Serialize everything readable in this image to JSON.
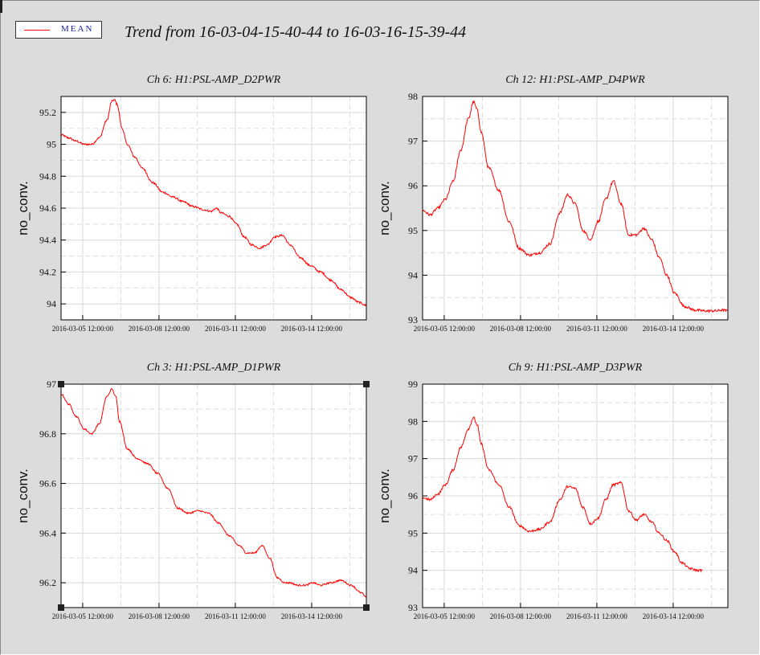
{
  "legend": {
    "label": "MEAN",
    "color": "#ff0000"
  },
  "title": "Trend from 16-03-04-15-40-44 to 16-03-16-15-39-44",
  "line_color": "#ff0000",
  "chart_data": [
    {
      "type": "line",
      "title": "Ch 6: H1:PSL-AMP_D2PWR",
      "ylabel": "no_conv.",
      "xlim": [
        0,
        12
      ],
      "ylim": [
        93.9,
        95.3
      ],
      "yticks": [
        94,
        94.2,
        94.4,
        94.6,
        94.8,
        95,
        95.2
      ],
      "ytick_labels": [
        "94",
        "94.2",
        "94.4",
        "94.6",
        "94.8",
        "95",
        "95.2"
      ],
      "xticks": [
        0.85,
        3.85,
        6.85,
        9.85
      ],
      "xtick_labels": [
        "2016-03-05 12:00:00",
        "2016-03-08 12:00:00",
        "2016-03-11 12:00:00",
        "2016-03-14 12:00:00"
      ],
      "grid": true,
      "noise": 0.006,
      "series": [
        {
          "x": [
            0,
            0.3,
            0.6,
            0.9,
            1.2,
            1.5,
            1.8,
            2.0,
            2.1,
            2.2,
            2.4,
            2.6,
            2.9,
            3.2,
            3.6,
            4.0,
            4.4,
            4.8,
            5.2,
            5.6,
            5.9,
            6.1,
            6.3,
            6.6,
            6.9,
            7.2,
            7.5,
            7.8,
            8.1,
            8.4,
            8.7,
            9.0,
            9.4,
            9.8,
            10.2,
            10.6,
            11.0,
            11.4,
            11.7,
            12.0
          ],
          "y": [
            95.06,
            95.04,
            95.02,
            95.0,
            95.0,
            95.04,
            95.15,
            95.27,
            95.28,
            95.25,
            95.1,
            95.0,
            94.92,
            94.85,
            94.76,
            94.7,
            94.67,
            94.64,
            94.61,
            94.59,
            94.58,
            94.6,
            94.57,
            94.55,
            94.5,
            94.42,
            94.37,
            94.35,
            94.37,
            94.42,
            94.43,
            94.37,
            94.29,
            94.24,
            94.2,
            94.15,
            94.09,
            94.04,
            94.01,
            93.99
          ]
        }
      ]
    },
    {
      "type": "line",
      "title": "Ch 12: H1:PSL-AMP_D4PWR",
      "ylabel": "no_conv.",
      "xlim": [
        0,
        12
      ],
      "ylim": [
        93,
        98
      ],
      "yticks": [
        93,
        94,
        95,
        96,
        97,
        98
      ],
      "ytick_labels": [
        "93",
        "94",
        "95",
        "96",
        "97",
        "98"
      ],
      "xticks": [
        0.85,
        3.85,
        6.85,
        9.85
      ],
      "xtick_labels": [
        "2016-03-05 12:00:00",
        "2016-03-08 12:00:00",
        "2016-03-11 12:00:00",
        "2016-03-14 12:00:00"
      ],
      "grid": true,
      "noise": 0.008,
      "series": [
        {
          "x": [
            0,
            0.3,
            0.6,
            0.9,
            1.2,
            1.5,
            1.8,
            2.0,
            2.15,
            2.3,
            2.6,
            3.0,
            3.4,
            3.8,
            4.2,
            4.6,
            5.0,
            5.4,
            5.7,
            6.0,
            6.3,
            6.6,
            6.9,
            7.2,
            7.5,
            7.8,
            8.1,
            8.4,
            8.7,
            9.0,
            9.3,
            9.6,
            9.9,
            10.3,
            10.7,
            11.1,
            11.5,
            11.8,
            12.0
          ],
          "y": [
            95.45,
            95.35,
            95.5,
            95.7,
            96.1,
            96.8,
            97.5,
            97.88,
            97.7,
            97.2,
            96.4,
            95.9,
            95.2,
            94.6,
            94.45,
            94.5,
            94.7,
            95.4,
            95.8,
            95.6,
            95.0,
            94.8,
            95.2,
            95.7,
            96.1,
            95.6,
            94.9,
            94.9,
            95.05,
            94.8,
            94.4,
            94.0,
            93.6,
            93.3,
            93.22,
            93.2,
            93.2,
            93.22,
            93.2
          ]
        }
      ]
    },
    {
      "type": "line",
      "title": "Ch 3: H1:PSL-AMP_D1PWR",
      "ylabel": "no_conv.",
      "xlim": [
        0,
        12
      ],
      "ylim": [
        96.1,
        97
      ],
      "yticks": [
        96.2,
        96.4,
        96.6,
        96.8,
        97
      ],
      "ytick_labels": [
        "96.2",
        "96.4",
        "96.6",
        "96.8",
        "97"
      ],
      "xticks": [
        0.85,
        3.85,
        6.85,
        9.85
      ],
      "xtick_labels": [
        "2016-03-05 12:00:00",
        "2016-03-08 12:00:00",
        "2016-03-11 12:00:00",
        "2016-03-14 12:00:00"
      ],
      "grid": true,
      "noise": 0.005,
      "selected": true,
      "series": [
        {
          "x": [
            0,
            0.3,
            0.6,
            0.9,
            1.2,
            1.5,
            1.8,
            2.0,
            2.15,
            2.3,
            2.6,
            3.0,
            3.4,
            3.8,
            4.2,
            4.6,
            5.0,
            5.4,
            5.8,
            6.2,
            6.6,
            7.0,
            7.3,
            7.6,
            7.9,
            8.2,
            8.5,
            8.8,
            9.0,
            9.3,
            9.6,
            9.9,
            10.2,
            10.6,
            11.0,
            11.4,
            11.8,
            12.0
          ],
          "y": [
            96.96,
            96.92,
            96.87,
            96.82,
            96.8,
            96.84,
            96.95,
            96.98,
            96.95,
            96.85,
            96.74,
            96.7,
            96.68,
            96.64,
            96.58,
            96.5,
            96.48,
            96.49,
            96.48,
            96.44,
            96.39,
            96.35,
            96.32,
            96.32,
            96.35,
            96.3,
            96.22,
            96.2,
            96.2,
            96.19,
            96.19,
            96.2,
            96.19,
            96.2,
            96.21,
            96.19,
            96.16,
            96.14
          ]
        }
      ]
    },
    {
      "type": "line",
      "title": "Ch 9: H1:PSL-AMP_D3PWR",
      "ylabel": "no_conv.",
      "xlim": [
        0,
        12
      ],
      "ylim": [
        93,
        99
      ],
      "yticks": [
        93,
        94,
        95,
        96,
        97,
        98,
        99
      ],
      "ytick_labels": [
        "93",
        "94",
        "95",
        "96",
        "97",
        "98",
        "99"
      ],
      "xticks": [
        0.85,
        3.85,
        6.85,
        9.85
      ],
      "xtick_labels": [
        "2016-03-05 12:00:00",
        "2016-03-08 12:00:00",
        "2016-03-11 12:00:00",
        "2016-03-14 12:00:00"
      ],
      "grid": true,
      "noise": 0.007,
      "series": [
        {
          "x": [
            0,
            0.3,
            0.6,
            0.9,
            1.2,
            1.5,
            1.8,
            2.0,
            2.15,
            2.3,
            2.6,
            3.0,
            3.4,
            3.8,
            4.2,
            4.6,
            5.0,
            5.4,
            5.7,
            6.0,
            6.3,
            6.6,
            6.9,
            7.2,
            7.5,
            7.8,
            8.1,
            8.4,
            8.7,
            9.0,
            9.3,
            9.6,
            9.9,
            10.2,
            10.5,
            10.8,
            11.0
          ],
          "y": [
            95.95,
            95.9,
            96.05,
            96.3,
            96.7,
            97.3,
            97.8,
            98.1,
            97.9,
            97.4,
            96.7,
            96.3,
            95.7,
            95.2,
            95.05,
            95.1,
            95.3,
            95.9,
            96.25,
            96.2,
            95.7,
            95.25,
            95.4,
            95.9,
            96.3,
            96.35,
            95.6,
            95.35,
            95.5,
            95.3,
            95.0,
            94.8,
            94.5,
            94.2,
            94.05,
            94.0,
            94.0
          ]
        }
      ]
    }
  ]
}
